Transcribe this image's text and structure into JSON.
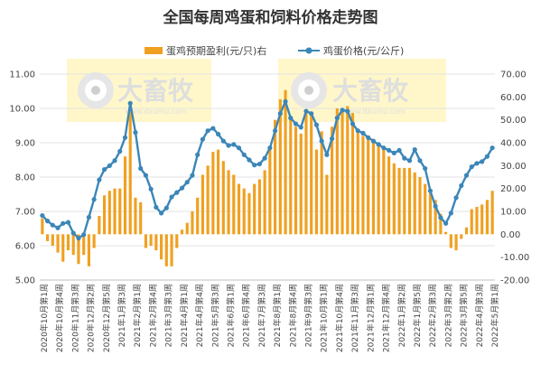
{
  "chart_data": {
    "type": "bar+line",
    "title": "全国每周鸡蛋和饲料价格走势图",
    "legend_position": "top",
    "grid": true,
    "colors": {
      "bar": "#f0a020",
      "line": "#3b86b8",
      "marker": "#3b86b8"
    },
    "y_left": {
      "min": 5.0,
      "max": 11.0,
      "ticks": [
        "5.00",
        "6.00",
        "7.00",
        "8.00",
        "9.00",
        "10.00",
        "11.00"
      ]
    },
    "y_right": {
      "min": -20,
      "max": 70,
      "ticks": [
        "-20.00",
        "-10.00",
        "0.00",
        "10.00",
        "20.00",
        "30.00",
        "40.00",
        "50.00",
        "60.00",
        "70.00"
      ]
    },
    "x_tick_labels": [
      "2020年10月第1周",
      "2020年10月第4周",
      "2020年11月第3周",
      "2020年12月第2周",
      "2020年12月第5周",
      "2021年1月第3周",
      "2021年2月第1周",
      "2021年2月第4周",
      "2021年3月第3周",
      "2021年4月第1周",
      "2021年4月第4周",
      "2021年5月第3周",
      "2021年6月第1周",
      "2021年6月第4周",
      "2021年7月第3周",
      "2021年8月第1周",
      "2021年8月第4周",
      "2021年9月第3周",
      "2021年10月第1周",
      "2021年10月第4周",
      "2021年11月第3周",
      "2021年12月第1周",
      "2021年12月第4周",
      "2022年1月第2周",
      "2022年1月第5周",
      "2022年2月第3周",
      "2022年3月第2周",
      "2022年3月第5周",
      "2022年4月第3周",
      "2022年5月第1周"
    ],
    "series": [
      {
        "name": "蛋鸡预期盈利(元/只)右",
        "type": "bar",
        "axis": "right",
        "values": [
          7,
          -3,
          -5,
          -8,
          -12,
          -7,
          -9,
          -13,
          -9,
          -14,
          -6,
          8,
          17,
          19,
          20,
          20,
          34,
          58,
          16,
          14,
          -6,
          -5,
          -7,
          -11,
          -14,
          -14,
          -6,
          2,
          5,
          10,
          16,
          26,
          30,
          36,
          37,
          32,
          28,
          26,
          22,
          20,
          18,
          22,
          24,
          28,
          38,
          50,
          59,
          63,
          51,
          47,
          44,
          53,
          53,
          37,
          45,
          26,
          47,
          55,
          54,
          56,
          53,
          46,
          43,
          42,
          40,
          39,
          37,
          34,
          31,
          29,
          29,
          29,
          27,
          25,
          22,
          18,
          15,
          9,
          1,
          -6,
          -7,
          -2,
          3,
          11,
          12,
          13,
          15,
          19
        ]
      },
      {
        "name": "鸡蛋价格(元/公斤)",
        "type": "line",
        "axis": "left",
        "values": [
          6.88,
          6.72,
          6.6,
          6.52,
          6.65,
          6.68,
          6.37,
          6.22,
          6.32,
          6.83,
          7.35,
          7.92,
          8.22,
          8.33,
          8.48,
          8.75,
          9.15,
          10.15,
          9.3,
          8.25,
          8.05,
          7.65,
          7.12,
          6.95,
          7.1,
          7.42,
          7.55,
          7.68,
          7.85,
          8.05,
          8.65,
          9.1,
          9.35,
          9.42,
          9.25,
          9.05,
          8.92,
          8.95,
          8.85,
          8.65,
          8.5,
          8.35,
          8.38,
          8.55,
          8.85,
          9.35,
          9.85,
          10.2,
          9.72,
          9.55,
          9.45,
          9.92,
          9.85,
          9.52,
          9.05,
          8.65,
          9.12,
          9.72,
          9.95,
          9.92,
          9.55,
          9.35,
          9.28,
          9.15,
          9.05,
          8.95,
          8.85,
          8.78,
          8.7,
          8.78,
          8.55,
          8.48,
          8.8,
          8.48,
          8.25,
          7.6,
          7.15,
          6.82,
          6.65,
          6.95,
          7.4,
          7.75,
          8.05,
          8.3,
          8.4,
          8.45,
          8.6,
          8.85
        ]
      }
    ]
  }
}
